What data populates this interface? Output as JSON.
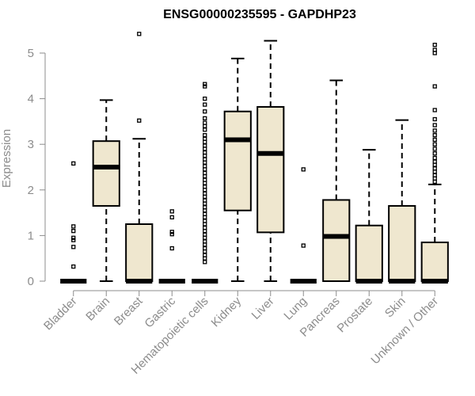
{
  "chart_data": {
    "type": "boxplot",
    "title": "ENSG00000235595 - GAPDHP23",
    "ylabel": "Expression",
    "xlabel": "",
    "ylim": [
      0,
      5.4
    ],
    "yticks": [
      0,
      1,
      2,
      3,
      4,
      5
    ],
    "grid": false,
    "colors": {
      "box_fill": "#efe7cf",
      "stroke": "#000000",
      "axis": "#8c8c8c"
    },
    "categories": [
      "Bladder",
      "Brain",
      "Breast",
      "Gastric",
      "Hematopoietic cells",
      "Kidney",
      "Liver",
      "Lung",
      "Pancreas",
      "Prostate",
      "Skin",
      "Unknown / Other"
    ],
    "boxes": [
      {
        "category": "Bladder",
        "whisker_low": 0,
        "q1": 0,
        "median": 0,
        "q3": 0,
        "whisker_high": 0,
        "outliers": [
          2.58,
          1.2,
          1.1,
          0.95,
          0.9,
          0.75,
          0.32
        ]
      },
      {
        "category": "Brain",
        "whisker_low": 0,
        "q1": 1.65,
        "median": 2.5,
        "q3": 3.07,
        "whisker_high": 3.97,
        "outliers": []
      },
      {
        "category": "Breast",
        "whisker_low": 0,
        "q1": 0,
        "median": 0,
        "q3": 1.25,
        "whisker_high": 3.12,
        "outliers": [
          5.42,
          3.52
        ]
      },
      {
        "category": "Gastric",
        "whisker_low": 0,
        "q1": 0,
        "median": 0,
        "q3": 0,
        "whisker_high": 0,
        "outliers": [
          1.53,
          1.4,
          1.08,
          1.03,
          0.72
        ]
      },
      {
        "category": "Hematopoietic cells",
        "whisker_low": 0,
        "q1": 0,
        "median": 0,
        "q3": 0,
        "whisker_high": 0,
        "outliers": [
          4.32,
          4.27,
          4.0,
          3.87,
          3.72,
          3.57,
          3.47,
          3.4,
          3.32,
          3.2,
          3.12,
          3.05,
          2.97,
          2.9,
          2.82,
          2.75,
          2.67,
          2.6,
          2.52,
          2.45,
          2.37,
          2.3,
          2.22,
          2.15,
          2.07,
          2.0,
          1.92,
          1.85,
          1.77,
          1.7,
          1.62,
          1.55,
          1.47,
          1.4,
          1.32,
          1.25,
          1.17,
          1.1,
          1.02,
          0.95,
          0.87,
          0.8,
          0.72,
          0.65,
          0.57,
          0.5,
          0.42
        ]
      },
      {
        "category": "Kidney",
        "whisker_low": 0,
        "q1": 1.55,
        "median": 3.1,
        "q3": 3.72,
        "whisker_high": 4.88,
        "outliers": []
      },
      {
        "category": "Liver",
        "whisker_low": 0,
        "q1": 1.07,
        "median": 2.8,
        "q3": 3.82,
        "whisker_high": 5.27,
        "outliers": []
      },
      {
        "category": "Lung",
        "whisker_low": 0,
        "q1": 0,
        "median": 0,
        "q3": 0,
        "whisker_high": 0,
        "outliers": [
          2.45,
          0.78
        ]
      },
      {
        "category": "Pancreas",
        "whisker_low": 0,
        "q1": 0,
        "median": 0.98,
        "q3": 1.78,
        "whisker_high": 4.4,
        "outliers": []
      },
      {
        "category": "Prostate",
        "whisker_low": 0,
        "q1": 0,
        "median": 0,
        "q3": 1.22,
        "whisker_high": 2.88,
        "outliers": []
      },
      {
        "category": "Skin",
        "whisker_low": 0,
        "q1": 0,
        "median": 0,
        "q3": 1.65,
        "whisker_high": 3.53,
        "outliers": []
      },
      {
        "category": "Unknown / Other",
        "whisker_low": 0,
        "q1": 0,
        "median": 0,
        "q3": 0.85,
        "whisker_high": 2.12,
        "outliers": [
          5.18,
          5.07,
          5.0,
          4.27,
          3.75,
          3.55,
          3.42,
          3.3,
          3.2,
          3.1,
          3.0,
          2.9,
          2.8,
          2.7,
          2.62,
          2.55,
          2.47,
          2.4,
          2.32,
          2.25,
          2.18
        ]
      }
    ]
  }
}
